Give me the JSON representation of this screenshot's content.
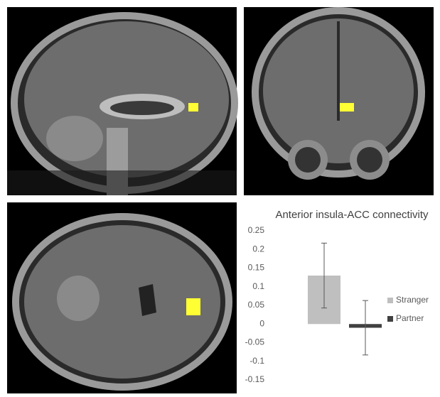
{
  "chart_data": {
    "type": "bar",
    "title": "Anterior insula-ACC connectivity",
    "series": [
      {
        "name": "Stranger",
        "color": "#bfbfbf",
        "values": [
          0.13
        ],
        "errors": [
          0.087
        ]
      },
      {
        "name": "Partner",
        "color": "#404040",
        "values": [
          -0.01
        ],
        "errors": [
          0.073
        ]
      }
    ],
    "ylim": [
      -0.15,
      0.25
    ],
    "yticks": [
      0.25,
      0.2,
      0.15,
      0.1,
      0.05,
      0,
      -0.05,
      -0.1,
      -0.15
    ],
    "grid": false,
    "legend": "right"
  }
}
